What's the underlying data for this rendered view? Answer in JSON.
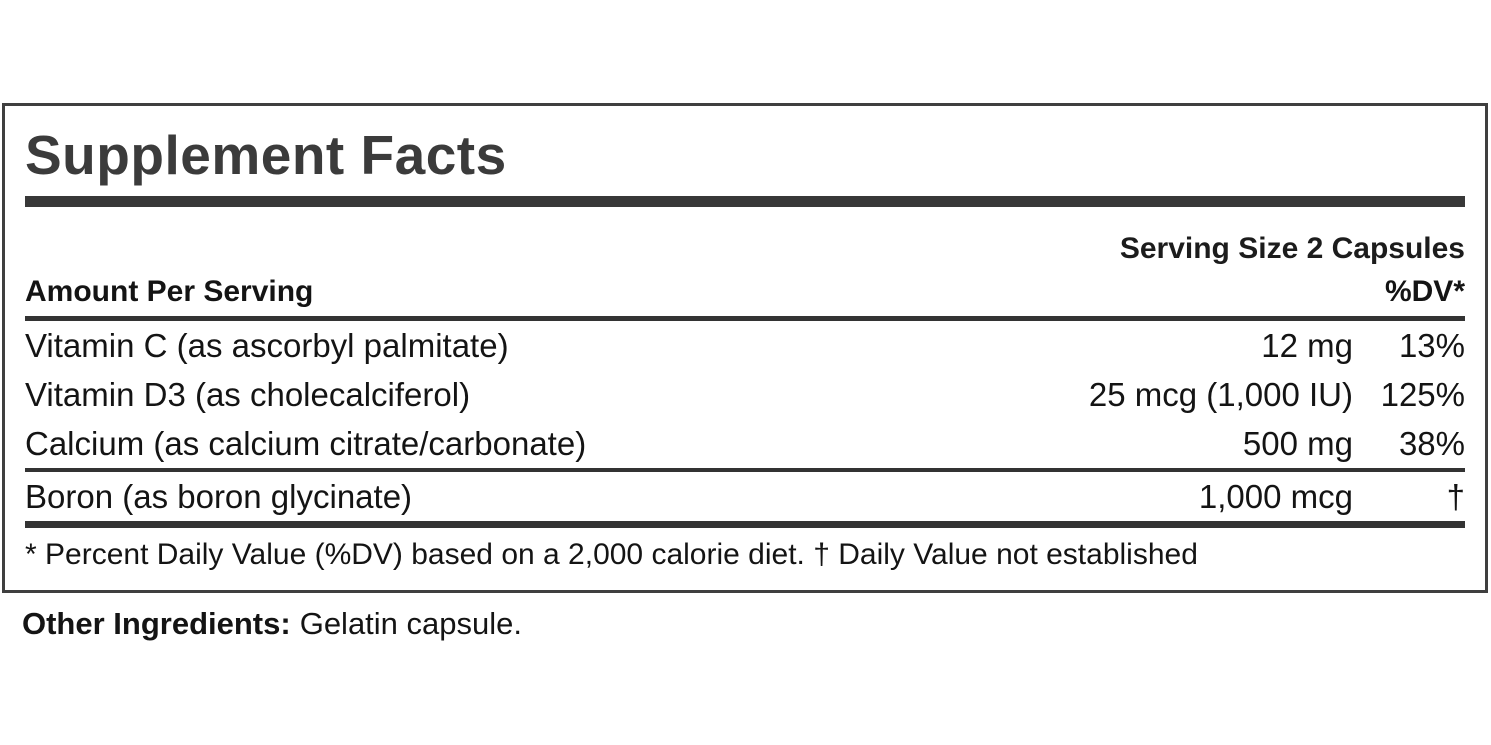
{
  "label": {
    "title": "Supplement Facts",
    "serving_size": "Serving Size 2 Capsules",
    "columns": {
      "amount_header": "Amount Per Serving",
      "dv_header": "%DV*"
    },
    "rows": [
      {
        "name": "Vitamin C (as ascorbyl palmitate)",
        "amount": "12 mg",
        "dv": "13%"
      },
      {
        "name": "Vitamin D3 (as cholecalciferol)",
        "amount": "25 mcg (1,000 IU)",
        "dv": "125%"
      },
      {
        "name": "Calcium (as calcium citrate/carbonate)",
        "amount": "500 mg",
        "dv": "38%"
      },
      {
        "name": "Boron (as boron glycinate)",
        "amount": "1,000 mcg",
        "dv": "†"
      }
    ],
    "footnote": "* Percent Daily Value (%DV) based on a 2,000 calorie diet. † Daily Value not established",
    "other_ingredients_label": "Other Ingredients:",
    "other_ingredients_value": "Gelatin capsule."
  },
  "colors": {
    "text": "#141414",
    "title": "#3b3b3b",
    "rule": "#333333",
    "border": "#3f3f3f",
    "background": "#ffffff"
  }
}
